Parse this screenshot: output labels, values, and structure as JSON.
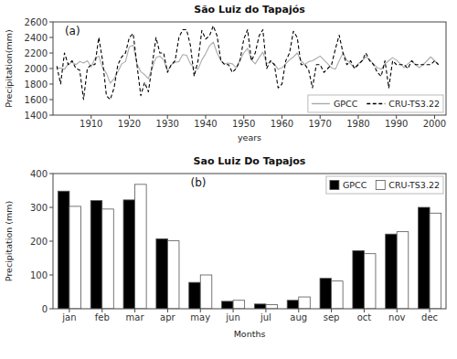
{
  "chart_data": [
    {
      "type": "line",
      "title": "São Luiz do Tapajós",
      "x_label": "years",
      "y_label": "Precipitation(mm)",
      "annotations": [
        "(a)"
      ],
      "x": [
        1901,
        1902,
        1903,
        1904,
        1905,
        1906,
        1907,
        1908,
        1909,
        1910,
        1911,
        1912,
        1913,
        1914,
        1915,
        1916,
        1917,
        1918,
        1919,
        1920,
        1921,
        1922,
        1923,
        1924,
        1925,
        1926,
        1927,
        1928,
        1929,
        1930,
        1931,
        1932,
        1933,
        1934,
        1935,
        1936,
        1937,
        1938,
        1939,
        1940,
        1941,
        1942,
        1943,
        1944,
        1945,
        1946,
        1947,
        1948,
        1949,
        1950,
        1951,
        1952,
        1953,
        1954,
        1955,
        1956,
        1957,
        1958,
        1959,
        1960,
        1961,
        1962,
        1963,
        1964,
        1965,
        1966,
        1967,
        1968,
        1969,
        1970,
        1971,
        1972,
        1973,
        1974,
        1975,
        1976,
        1977,
        1978,
        1979,
        1980,
        1981,
        1982,
        1983,
        1984,
        1985,
        1986,
        1987,
        1988,
        1989,
        1990,
        1991,
        1992,
        1993,
        1994,
        1995,
        1996,
        1997,
        1998,
        1999,
        2000,
        2001
      ],
      "series": [
        {
          "name": "GPCC",
          "color": "#aaaaaa",
          "line_style": "solid",
          "values": [
            2010,
            2005,
            1990,
            2060,
            2080,
            2050,
            2090,
            2070,
            2100,
            2020,
            2130,
            2160,
            2010,
            1940,
            1810,
            1870,
            1960,
            2060,
            2090,
            2280,
            2300,
            2060,
            1960,
            1920,
            1870,
            2010,
            2140,
            2160,
            2110,
            1970,
            2050,
            2080,
            2090,
            2180,
            2170,
            2060,
            2010,
            1990,
            2110,
            2190,
            2290,
            2340,
            2200,
            2100,
            2060,
            2070,
            2060,
            2010,
            2110,
            2200,
            2260,
            2110,
            2060,
            2140,
            2210,
            2060,
            2090,
            2060,
            1990,
            2010,
            2060,
            2110,
            2150,
            2200,
            2100,
            2050,
            2090,
            2100,
            2130,
            2160,
            2110,
            2060,
            2010,
            1990,
            2100,
            2200,
            2110,
            2060,
            2010,
            2060,
            2100,
            2150,
            2110,
            2060,
            2010,
            1990,
            2060,
            2100,
            2140,
            2110,
            2060,
            2010,
            2060,
            2100,
            2050,
            2010,
            2050,
            2100,
            2150,
            2100,
            2050
          ]
        },
        {
          "name": "CRU-TS3.22",
          "color": "#000000",
          "line_style": "dashed",
          "values": [
            2030,
            1800,
            2200,
            2050,
            2100,
            2000,
            1980,
            1600,
            2000,
            2050,
            2050,
            2400,
            2100,
            1650,
            1600,
            1750,
            2050,
            2150,
            2200,
            2400,
            2450,
            2050,
            1650,
            1820,
            1700,
            2050,
            2400,
            2200,
            2200,
            1950,
            2050,
            2100,
            2400,
            2500,
            2500,
            2300,
            1900,
            2100,
            2490,
            2380,
            2420,
            2550,
            2420,
            2100,
            2050,
            2050,
            1950,
            2000,
            2100,
            2380,
            2500,
            2100,
            2200,
            2420,
            2500,
            2000,
            2100,
            2050,
            1750,
            1800,
            2100,
            2200,
            2480,
            2400,
            2050,
            2050,
            1980,
            1750,
            2050,
            2050,
            1950,
            2000,
            2050,
            2250,
            2430,
            2200,
            2050,
            2100,
            2000,
            2050,
            2100,
            2200,
            2100,
            2050,
            1950,
            1900,
            2100,
            1750,
            2100,
            2050,
            2050,
            2050,
            2000,
            2100,
            2050,
            2050,
            2050,
            2050,
            2050,
            2100,
            2050
          ]
        }
      ],
      "xlim": [
        1900,
        2003
      ],
      "xticks": [
        1910,
        1920,
        1930,
        1940,
        1950,
        1960,
        1970,
        1980,
        1990,
        2000
      ],
      "ylim": [
        1400,
        2600
      ],
      "yticks": [
        1400,
        1600,
        1800,
        2000,
        2200,
        2400,
        2600
      ],
      "grid": false,
      "legend": "lower right"
    },
    {
      "type": "bar",
      "title": "Sao Luiz Do Tapajos",
      "x_label": "Months",
      "y_label": "Precipitation (mm)",
      "annotations": [
        "(b)"
      ],
      "categories": [
        "jan",
        "feb",
        "mar",
        "apr",
        "may",
        "jun",
        "jul",
        "aug",
        "sep",
        "oct",
        "nov",
        "dec"
      ],
      "series": [
        {
          "name": "GPCC",
          "color": "#000000",
          "values": [
            348,
            320,
            322,
            207,
            78,
            22,
            14,
            25,
            90,
            172,
            221,
            300
          ]
        },
        {
          "name": "CRU-TS3.22",
          "color": "#ffffff",
          "values": [
            303,
            295,
            368,
            201,
            100,
            25,
            12,
            35,
            82,
            163,
            228,
            283
          ]
        }
      ],
      "ylim": [
        0,
        400
      ],
      "yticks": [
        0,
        100,
        200,
        300,
        400
      ],
      "grid": false,
      "legend": "upper right"
    }
  ]
}
